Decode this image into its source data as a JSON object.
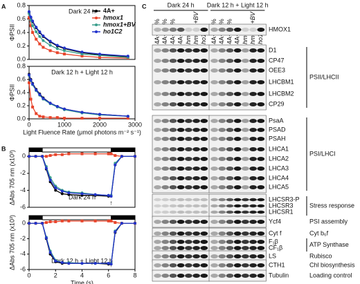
{
  "chart_data": [
    {
      "type": "line",
      "panel_label": "A",
      "title": "Dark 24 h",
      "y_label": "ΦPSII",
      "x": [
        0,
        50,
        100,
        200,
        300,
        400,
        600,
        800,
        1000,
        1500,
        2000,
        2800
      ],
      "xlim": [
        0,
        3000
      ],
      "ylim": [
        0,
        0.8
      ],
      "yticks": [
        {
          "value": 0,
          "label": "0.0"
        },
        0.2,
        0.4,
        0.6,
        0.8
      ],
      "legend": "upper right",
      "series": [
        {
          "name": "4A+",
          "color": "#000000",
          "values": [
            0.7,
            0.62,
            0.56,
            0.47,
            0.4,
            0.34,
            0.26,
            0.2,
            0.16,
            0.1,
            0.07,
            0.04
          ]
        },
        {
          "name": "hmox1",
          "color": "#e8452c",
          "values": [
            0.62,
            0.5,
            0.4,
            0.3,
            0.23,
            0.18,
            0.13,
            0.1,
            0.08,
            0.05,
            0.03,
            0.02
          ]
        },
        {
          "name": "hmox1+BV",
          "color": "#3a9e8c",
          "values": [
            0.68,
            0.58,
            0.5,
            0.41,
            0.34,
            0.28,
            0.21,
            0.16,
            0.13,
            0.08,
            0.06,
            0.03
          ]
        },
        {
          "name": "ho1C2",
          "color": "#2233cc",
          "values": [
            0.71,
            0.63,
            0.57,
            0.48,
            0.41,
            0.35,
            0.27,
            0.21,
            0.17,
            0.11,
            0.08,
            0.05
          ]
        }
      ]
    },
    {
      "type": "line",
      "title": "Dark 12 h + Light 12 h",
      "y_label": "ΦPSII",
      "x_label": "Light Fluence Rate (μmol photons m⁻² s⁻¹)",
      "x": [
        0,
        50,
        100,
        200,
        300,
        400,
        600,
        800,
        1000,
        1500,
        2000,
        2800
      ],
      "xlim": [
        0,
        3000
      ],
      "xticks": [
        0,
        1000,
        2000,
        3000
      ],
      "ylim": [
        0,
        0.8
      ],
      "yticks": [
        {
          "value": 0,
          "label": "0.0"
        },
        0.2,
        0.4,
        0.6,
        0.8
      ],
      "series": [
        {
          "color": "#000000",
          "values": [
            0.68,
            0.6,
            0.54,
            0.45,
            0.38,
            0.32,
            0.24,
            0.19,
            0.15,
            0.1,
            0.07,
            0.04
          ]
        },
        {
          "color": "#e8452c",
          "values": [
            0.55,
            0.3,
            0.18,
            0.08,
            0.04,
            0.03,
            0.02,
            0.02,
            0.01,
            0.01,
            0.01,
            0.01
          ]
        },
        {
          "color": "#3a9e8c",
          "values": [
            0.66,
            0.58,
            0.52,
            0.43,
            0.36,
            0.3,
            0.23,
            0.18,
            0.14,
            0.09,
            0.06,
            0.04
          ]
        },
        {
          "color": "#2233cc",
          "values": [
            0.67,
            0.59,
            0.53,
            0.44,
            0.37,
            0.31,
            0.24,
            0.19,
            0.15,
            0.1,
            0.07,
            0.04
          ]
        }
      ]
    },
    {
      "type": "line",
      "panel_label": "B",
      "title": "Dark 24 h",
      "y_label": "ΔAbs 705 nm (x10³)",
      "x": [
        0,
        0.5,
        1,
        1.3,
        1.6,
        2,
        2.5,
        3,
        4,
        5,
        6,
        6.2,
        6.5,
        7,
        8
      ],
      "xlim": [
        0,
        8
      ],
      "ylim": [
        -6,
        1
      ],
      "yticks": [
        0,
        -2,
        -4,
        -6
      ],
      "series": [
        {
          "color": "#000000",
          "values": [
            0,
            0,
            0,
            -1.5,
            -3,
            -4,
            -4.4,
            -4.5,
            -4.6,
            -4.6,
            -4.7,
            -4.7,
            -1,
            0,
            0
          ]
        },
        {
          "color": "#e8452c",
          "values": [
            0,
            0,
            0,
            0,
            0.1,
            0.2,
            0.2,
            0.3,
            0.3,
            0.3,
            0.3,
            0.3,
            0.1,
            0,
            0
          ]
        },
        {
          "color": "#3a9e8c",
          "values": [
            0,
            0,
            0,
            -1.2,
            -2.5,
            -3.5,
            -4,
            -4.2,
            -4.3,
            -4.5,
            -4.6,
            -4.6,
            -0.8,
            0,
            0
          ]
        },
        {
          "color": "#2233cc",
          "values": [
            0,
            0,
            0,
            -1.4,
            -2.8,
            -3.7,
            -4.1,
            -4.3,
            -4.4,
            -4.5,
            -4.6,
            -4.7,
            -1,
            0,
            0
          ]
        }
      ]
    },
    {
      "type": "line",
      "title": "Dark 12 h + Light 12 h",
      "y_label": "ΔAbs 705 nm (x10³)",
      "x_label": "Time (s)",
      "x": [
        0,
        0.5,
        1,
        1.3,
        1.6,
        2,
        2.5,
        3,
        4,
        5,
        6,
        6.2,
        6.5,
        7,
        8
      ],
      "xlim": [
        0,
        8
      ],
      "xticks": [
        0,
        2,
        4,
        6,
        8
      ],
      "ylim": [
        -6,
        1
      ],
      "yticks": [
        0,
        -2,
        -4,
        -6
      ],
      "series": [
        {
          "color": "#000000",
          "values": [
            0,
            0,
            0,
            -2,
            -4,
            -5,
            -5.2,
            -5.2,
            -5.2,
            -5.2,
            -5.3,
            -5.3,
            -1.2,
            0,
            0
          ]
        },
        {
          "color": "#e8452c",
          "values": [
            0,
            0,
            0,
            0.1,
            0.2,
            0.2,
            0.3,
            0.3,
            0.3,
            0.3,
            0.3,
            0.3,
            0.1,
            0,
            0
          ]
        },
        {
          "color": "#3a9e8c",
          "values": [
            0,
            0,
            0,
            -1.8,
            -3.6,
            -4.8,
            -5.1,
            -5.1,
            -5.2,
            -5.2,
            -5.2,
            -5.2,
            -1,
            0,
            0
          ]
        },
        {
          "color": "#2233cc",
          "values": [
            0,
            0,
            0,
            -1.9,
            -3.8,
            -4.9,
            -5.1,
            -5.2,
            -5.2,
            -5.2,
            -5.2,
            -5.3,
            -1.1,
            0,
            0
          ]
        }
      ]
    }
  ],
  "blot": {
    "panel_label": "C",
    "conditions": [
      "Dark 24 h",
      "Dark 12 h + Light 12 h"
    ],
    "lanes": [
      "4A+ 10%",
      "4A+ 25%",
      "4A+ 50%",
      "4A+",
      "hmox1",
      "hmox1 +BV",
      "ho1C2"
    ],
    "groups": [
      {
        "proteins": [
          "HMOX1"
        ]
      },
      {
        "label": "PSII/LHCII",
        "proteins": [
          "D1",
          "CP47",
          "OEE3",
          "LHCBM1",
          "LHCBM2",
          "CP29"
        ]
      },
      {
        "label": "PSI/LHCI",
        "proteins": [
          "PsaA",
          "PSAD",
          "PSAH",
          "LHCA1",
          "LHCA2",
          "LHCA3",
          "LHCA4",
          "LHCA5"
        ]
      },
      {
        "label": "Stress response",
        "proteins": [
          "LHCSR3-P",
          "LHCSR3",
          "LHCSR1"
        ]
      },
      {
        "label": "PSI assembly",
        "proteins": [
          "Ycf4"
        ]
      },
      {
        "label": "Cyt b₆f",
        "proteins": [
          "Cyt f"
        ]
      },
      {
        "label": "ATP Synthase",
        "proteins": [
          "F₁β",
          "CF₁β"
        ]
      },
      {
        "label": "Rubisco",
        "proteins": [
          "LS"
        ]
      },
      {
        "label": "Chl biosynthesis",
        "proteins": [
          "CTH1"
        ]
      },
      {
        "label": "Loading control",
        "proteins": [
          "Tubulin"
        ]
      }
    ]
  }
}
